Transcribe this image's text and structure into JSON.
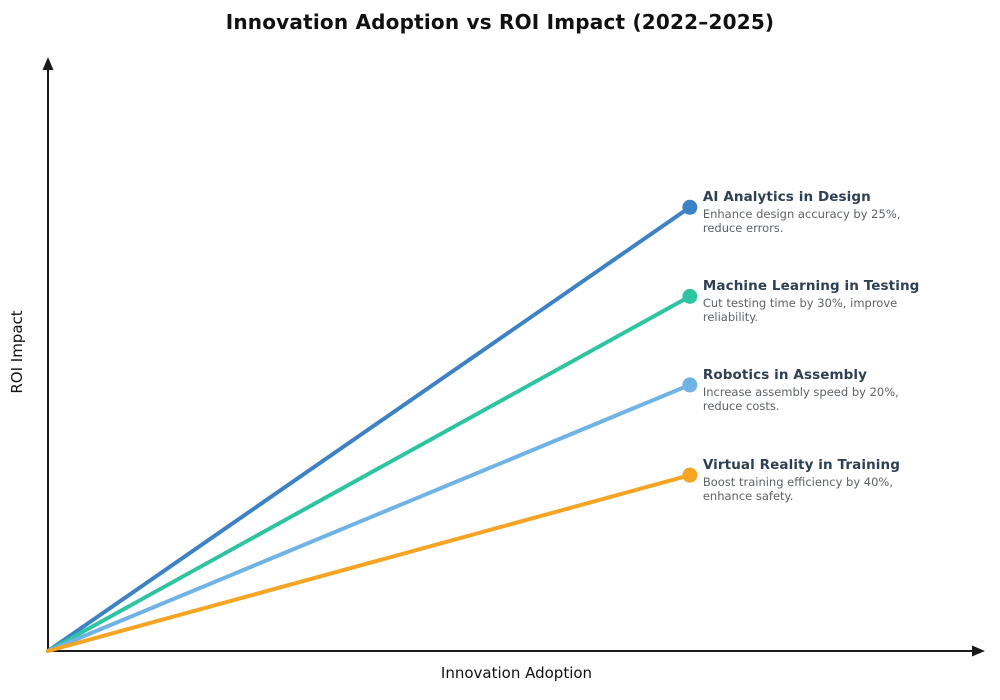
{
  "title": "Innovation Adoption vs ROI Impact (2022–2025)",
  "axes": {
    "x_label": "Innovation Adoption",
    "y_label": "ROI Impact",
    "axis_color": "#1a1a1a"
  },
  "chart_data": {
    "type": "line",
    "title": "Innovation Adoption vs ROI Impact (2022–2025)",
    "xlabel": "Innovation Adoption",
    "ylabel": "ROI Impact",
    "xlim": [
      0,
      1
    ],
    "ylim": [
      0,
      1
    ],
    "grid": false,
    "legend": "inline-annotations-right-of-endpoints",
    "axis_ticks": "none",
    "axis_arrows": true,
    "series": [
      {
        "name": "AI Analytics in Design",
        "color": "#3d82c4",
        "x": [
          0,
          0.685
        ],
        "y": [
          0,
          0.747
        ],
        "annotation": "Enhance design accuracy by 25%,\nreduce errors."
      },
      {
        "name": "Machine Learning in Testing",
        "color": "#2ec4a0",
        "x": [
          0,
          0.685
        ],
        "y": [
          0,
          0.597
        ],
        "annotation": "Cut testing time by 30%, improve\nreliability."
      },
      {
        "name": "Robotics in Assembly",
        "color": "#6fb2e5",
        "x": [
          0,
          0.685
        ],
        "y": [
          0,
          0.448
        ],
        "annotation": "Increase assembly speed by 20%,\nreduce costs."
      },
      {
        "name": "Virtual Reality in Training",
        "color": "#f5a423",
        "x": [
          0,
          0.685
        ],
        "y": [
          0,
          0.296
        ],
        "annotation": "Boost training efficiency by 40%,\nenhance safety."
      }
    ]
  }
}
